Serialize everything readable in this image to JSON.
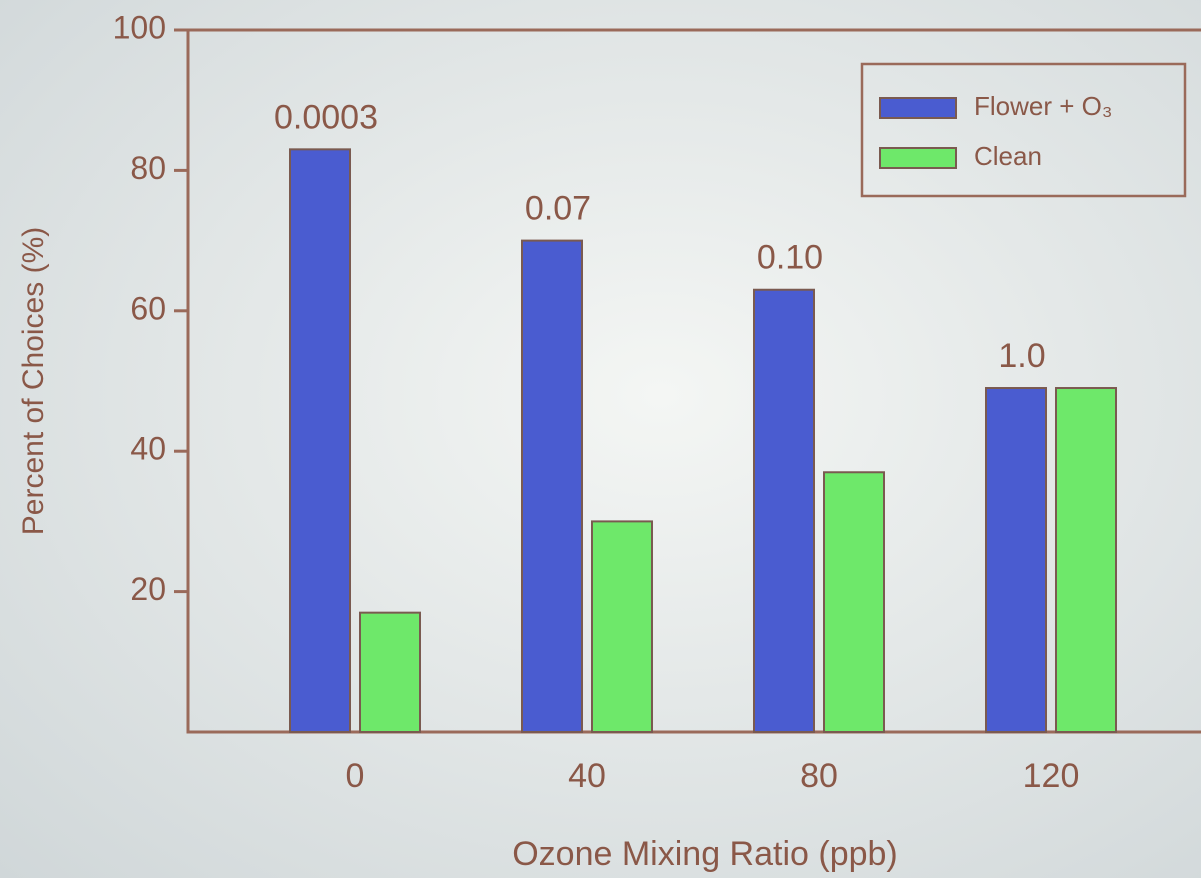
{
  "chart_data": {
    "type": "bar",
    "categories": [
      "0",
      "40",
      "80",
      "120"
    ],
    "series": [
      {
        "name": "Flower + O₃",
        "color": "#4a5cd0",
        "values": [
          83,
          70,
          63,
          49
        ]
      },
      {
        "name": "Clean",
        "color": "#6ee86a",
        "values": [
          17,
          30,
          37,
          49
        ]
      }
    ],
    "annotations": [
      "0.0003",
      "0.07",
      "0.10",
      "1.0"
    ],
    "x_label": "Ozone Mixing Ratio (ppb)",
    "y_label": "Percent of Choices (%)",
    "ylim": [
      0,
      100
    ],
    "yticks": [
      20,
      40,
      60,
      80,
      100
    ],
    "legend": "upper right"
  }
}
